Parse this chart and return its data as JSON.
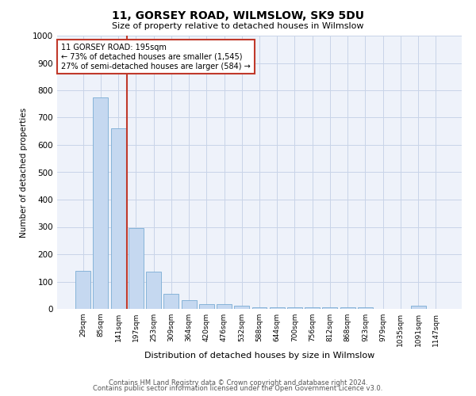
{
  "title": "11, GORSEY ROAD, WILMSLOW, SK9 5DU",
  "subtitle": "Size of property relative to detached houses in Wilmslow",
  "xlabel": "Distribution of detached houses by size in Wilmslow",
  "ylabel": "Number of detached properties",
  "footer_line1": "Contains HM Land Registry data © Crown copyright and database right 2024.",
  "footer_line2": "Contains public sector information licensed under the Open Government Licence v3.0.",
  "categories": [
    "29sqm",
    "85sqm",
    "141sqm",
    "197sqm",
    "253sqm",
    "309sqm",
    "364sqm",
    "420sqm",
    "476sqm",
    "532sqm",
    "588sqm",
    "644sqm",
    "700sqm",
    "756sqm",
    "812sqm",
    "868sqm",
    "923sqm",
    "979sqm",
    "1035sqm",
    "1091sqm",
    "1147sqm"
  ],
  "values": [
    140,
    775,
    660,
    295,
    135,
    55,
    32,
    18,
    18,
    13,
    7,
    7,
    7,
    7,
    7,
    7,
    7,
    0,
    0,
    12,
    0
  ],
  "bar_color": "#c5d8f0",
  "bar_edge_color": "#7aacd4",
  "vline_color": "#c0392b",
  "ylim": [
    0,
    1000
  ],
  "yticks": [
    0,
    100,
    200,
    300,
    400,
    500,
    600,
    700,
    800,
    900,
    1000
  ],
  "annotation_text_line1": "11 GORSEY ROAD: 195sqm",
  "annotation_text_line2": "← 73% of detached houses are smaller (1,545)",
  "annotation_text_line3": "27% of semi-detached houses are larger (584) →",
  "annotation_box_color": "#c0392b",
  "grid_color": "#c8d4e8",
  "background_color": "#eef2fa"
}
